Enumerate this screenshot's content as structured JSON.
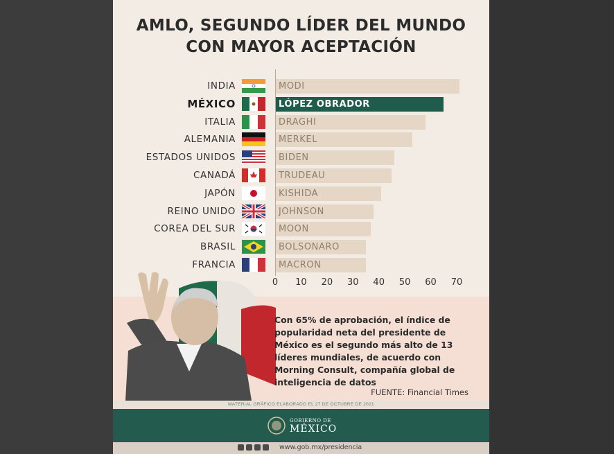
{
  "title_line1": "AMLO, SEGUNDO LÍDER DEL MUNDO",
  "title_line2": "CON MAYOR ACEPTACIÓN",
  "chart_data": {
    "type": "bar",
    "orientation": "horizontal",
    "categories": [
      "INDIA",
      "MÉXICO",
      "ITALIA",
      "ALEMANIA",
      "ESTADOS UNIDOS",
      "CANADÁ",
      "JAPÓN",
      "REINO UNIDO",
      "COREA DEL SUR",
      "BRASIL",
      "FRANCIA"
    ],
    "leaders": [
      "MODI",
      "LÓPEZ OBRADOR",
      "DRAGHI",
      "MERKEL",
      "BIDEN",
      "TRUDEAU",
      "KISHIDA",
      "JOHNSON",
      "MOON",
      "BOLSONARO",
      "MACRON"
    ],
    "values": [
      71,
      65,
      58,
      53,
      46,
      45,
      41,
      38,
      37,
      35,
      35
    ],
    "highlight_index": 1,
    "xlim": [
      0,
      70
    ],
    "xticks": [
      "0",
      "10",
      "20",
      "30",
      "40",
      "50",
      "60",
      "70"
    ],
    "xlabel": "",
    "ylabel": "",
    "grid": false,
    "colors": {
      "bar": "#e6d6c5",
      "highlight": "#1f5c4b",
      "label": "#8e7f70"
    }
  },
  "description": "Con 65% de aprobación, el índice de popularidad neta del presidente de México es el segundo más alto de 13 líderes mundiales, de acuerdo con Morning Consult, compañía global de inteligencia de datos",
  "source": "FUENTE: Financial Times",
  "note": "MATERIAL GRÁFICO ELABORADO EL 27 DE OCTUBRE DE 2021",
  "footer": {
    "gov_small": "GOBIERNO DE",
    "gov_big": "MÉXICO",
    "url": "www.gob.mx/presidencia",
    "brand_color": "#235b4e"
  },
  "icons": [
    "flag-icons",
    "national-seal-icon",
    "facebook-icon",
    "twitter-icon",
    "instagram-icon",
    "youtube-icon"
  ]
}
